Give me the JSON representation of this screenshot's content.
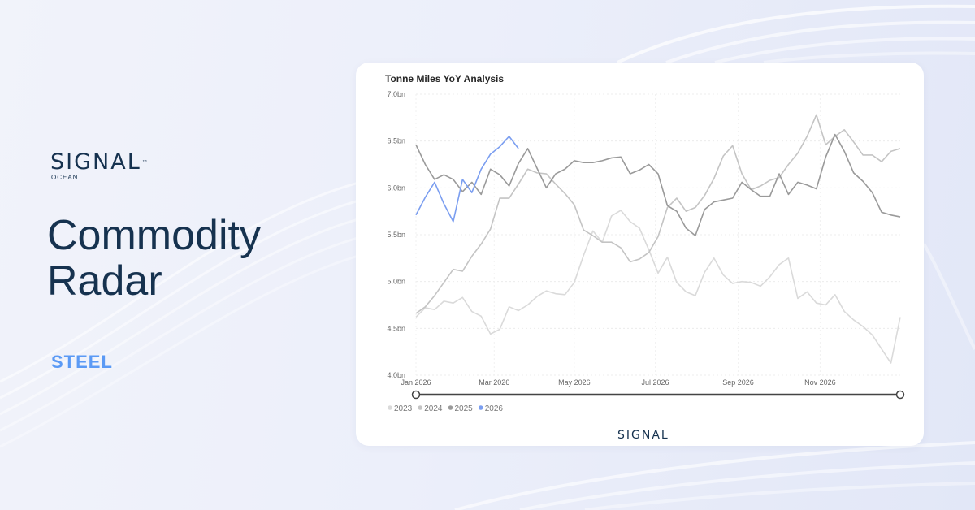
{
  "brand": {
    "name": "SIGNAL",
    "trademark": "™",
    "subtitle": "OCEAN"
  },
  "headline": {
    "line1": "Commodity",
    "line2": "Radar"
  },
  "tag": "STEEL",
  "footer_logo": "SIGNAL",
  "colors": {
    "navy": "#16324f",
    "accent_blue": "#5b9af5"
  },
  "chart_data": {
    "type": "line",
    "title": "Tonne Miles YoY Analysis",
    "xlabel": "",
    "ylabel": "",
    "y_ticks": [
      "4.0bn",
      "4.5bn",
      "5.0bn",
      "5.5bn",
      "6.0bn",
      "6.5bn",
      "7.0bn"
    ],
    "ylim": [
      4.0,
      7.0
    ],
    "x_ticks": [
      {
        "label": "Jan 2026",
        "week": 0
      },
      {
        "label": "Mar 2026",
        "week": 8.4
      },
      {
        "label": "May 2026",
        "week": 17
      },
      {
        "label": "Jul 2026",
        "week": 25.7
      },
      {
        "label": "Sep 2026",
        "week": 34.6
      },
      {
        "label": "Nov 2026",
        "week": 43.4
      }
    ],
    "x_unit": "week of year",
    "xlim": [
      0,
      52
    ],
    "grid": true,
    "legend_position": "bottom-left",
    "series": [
      {
        "name": "2023",
        "color": "#dadada",
        "values": [
          4.62,
          4.72,
          4.7,
          4.79,
          4.77,
          4.83,
          4.68,
          4.63,
          4.44,
          4.49,
          4.73,
          4.69,
          4.75,
          4.84,
          4.9,
          4.87,
          4.86,
          4.99,
          5.28,
          5.54,
          5.42,
          5.7,
          5.76,
          5.64,
          5.57,
          5.34,
          5.09,
          5.26,
          4.99,
          4.89,
          4.85,
          5.1,
          5.25,
          5.07,
          4.98,
          5.0,
          4.99,
          4.95,
          5.05,
          5.18,
          5.25,
          4.82,
          4.89,
          4.77,
          4.75,
          4.86,
          4.68,
          4.59,
          4.52,
          4.43,
          4.28,
          4.13,
          4.62
        ]
      },
      {
        "name": "2024",
        "color": "#c4c4c4",
        "values": [
          4.66,
          4.73,
          4.85,
          4.99,
          5.13,
          5.11,
          5.27,
          5.4,
          5.56,
          5.89,
          5.89,
          6.04,
          6.2,
          6.16,
          6.15,
          6.04,
          5.94,
          5.82,
          5.55,
          5.49,
          5.42,
          5.42,
          5.36,
          5.21,
          5.24,
          5.31,
          5.48,
          5.79,
          5.89,
          5.75,
          5.79,
          5.92,
          6.1,
          6.34,
          6.45,
          6.15,
          5.98,
          6.02,
          6.08,
          6.11,
          6.25,
          6.37,
          6.55,
          6.78,
          6.46,
          6.55,
          6.62,
          6.49,
          6.35,
          6.35,
          6.28,
          6.39,
          6.42
        ]
      },
      {
        "name": "2025",
        "color": "#9a9a9a",
        "values": [
          6.46,
          6.25,
          6.09,
          6.14,
          6.09,
          5.96,
          6.06,
          5.93,
          6.2,
          6.14,
          6.02,
          6.26,
          6.42,
          6.21,
          6.0,
          6.15,
          6.2,
          6.29,
          6.27,
          6.27,
          6.29,
          6.32,
          6.33,
          6.15,
          6.19,
          6.25,
          6.15,
          5.81,
          5.75,
          5.57,
          5.49,
          5.77,
          5.85,
          5.87,
          5.89,
          6.06,
          5.98,
          5.91,
          5.91,
          6.15,
          5.93,
          6.06,
          6.03,
          5.99,
          6.33,
          6.57,
          6.39,
          6.16,
          6.07,
          5.95,
          5.74,
          5.71,
          5.69
        ]
      },
      {
        "name": "2026",
        "color": "#7b9ef0",
        "values": [
          5.71,
          5.9,
          6.06,
          5.83,
          5.64,
          6.09,
          5.95,
          6.2,
          6.36,
          6.44,
          6.55,
          6.42
        ]
      }
    ]
  }
}
